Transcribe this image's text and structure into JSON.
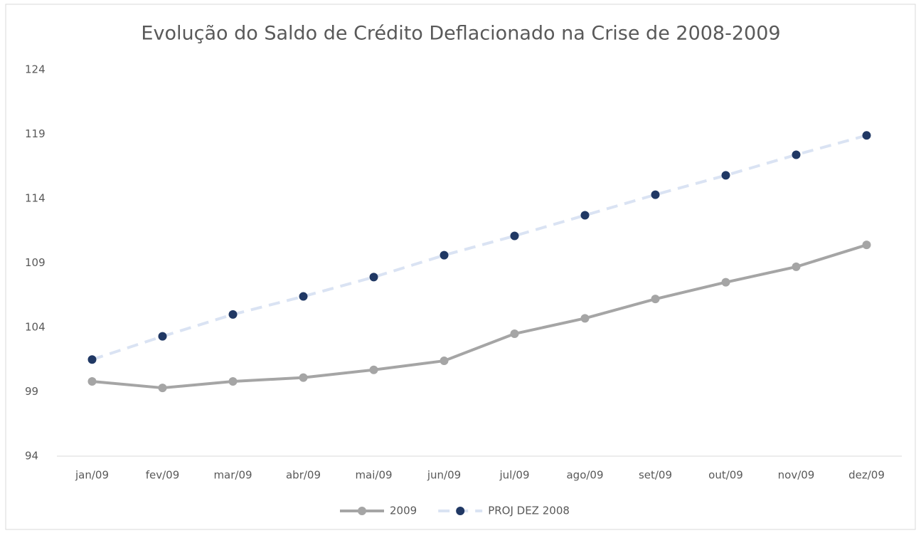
{
  "chart_data": {
    "type": "line",
    "title": "Evolução do Saldo de Crédito Deflacionado na Crise de 2008-2009",
    "categories": [
      "jan/09",
      "fev/09",
      "mar/09",
      "abr/09",
      "mai/09",
      "jun/09",
      "jul/09",
      "ago/09",
      "set/09",
      "out/09",
      "nov/09",
      "dez/09"
    ],
    "series": [
      {
        "name": "2009",
        "color": "#a5a5a5",
        "marker_color": "#a5a5a5",
        "dashed": false,
        "values": [
          99.8,
          99.3,
          99.8,
          100.1,
          100.7,
          101.4,
          103.5,
          104.7,
          106.2,
          107.5,
          108.7,
          110.4
        ]
      },
      {
        "name": "PROJ DEZ 2008",
        "color": "#dae3f3",
        "marker_color": "#203864",
        "dashed": true,
        "values": [
          101.5,
          103.3,
          105.0,
          106.4,
          107.9,
          109.6,
          111.1,
          112.7,
          114.3,
          115.8,
          117.4,
          118.9
        ]
      }
    ],
    "ylim": [
      94,
      124
    ],
    "yticks": [
      94,
      99,
      104,
      109,
      114,
      119,
      124
    ],
    "grid": false,
    "legend": "bottom"
  }
}
